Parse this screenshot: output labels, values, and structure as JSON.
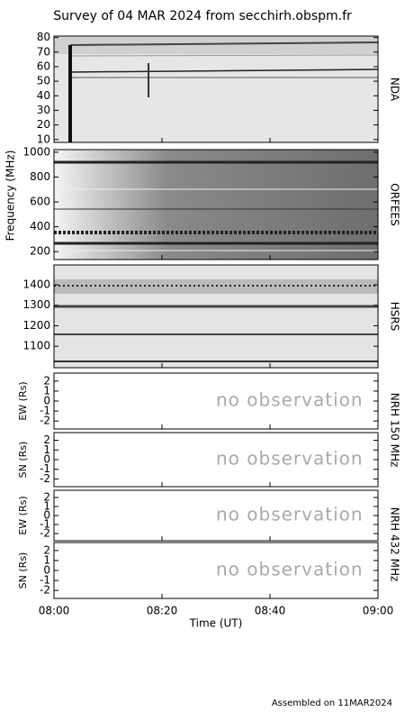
{
  "chart_data": {
    "type": "spectrogram_survey",
    "title": "Survey of 04 MAR 2024 from secchirh.obspm.fr",
    "xlabel": "Time (UT)",
    "xlim": [
      0,
      60
    ],
    "xticks": [
      {
        "value": 0,
        "label": "08:00"
      },
      {
        "value": 20,
        "label": "08:20"
      },
      {
        "value": 40,
        "label": "08:40"
      },
      {
        "value": 60,
        "label": "09:00"
      }
    ],
    "ylabel": "Frequency (MHz)",
    "panels": [
      {
        "instrument": "NDA",
        "ylim": [
          8,
          81
        ],
        "yticks": [
          10,
          20,
          30,
          40,
          50,
          60,
          70,
          80
        ]
      },
      {
        "instrument": "ORFEES",
        "ylim": [
          136,
          1021
        ],
        "yticks": [
          200,
          400,
          600,
          800,
          1000
        ]
      },
      {
        "instrument": "HSRS",
        "ylim": [
          995,
          1497
        ],
        "yticks": [
          1100,
          1200,
          1300,
          1400
        ]
      },
      {
        "ylabel": "EW (Rs)",
        "ylim": [
          -2.8,
          2.8
        ],
        "yticks": [
          2,
          1,
          0,
          -1,
          -2
        ],
        "note": "no observation"
      },
      {
        "ylabel": "SN (Rs)",
        "ylim": [
          -2.8,
          2.8
        ],
        "yticks": [
          2,
          1,
          0,
          -1,
          -2
        ],
        "note": "no observation"
      },
      {
        "ylabel": "EW (Rs)",
        "ylim": [
          -2.8,
          2.8
        ],
        "yticks": [
          2,
          1,
          0,
          -1,
          -2
        ],
        "note": "no observation"
      },
      {
        "ylabel": "SN (Rs)",
        "ylim": [
          -2.8,
          2.8
        ],
        "yticks": [
          2,
          1,
          0,
          -1,
          -2
        ],
        "note": "no observation"
      }
    ],
    "nrh_groups": [
      "NRH 150 MHz",
      "NRH 432 MHz"
    ],
    "footer": "Assembled on 11MAR2024"
  }
}
